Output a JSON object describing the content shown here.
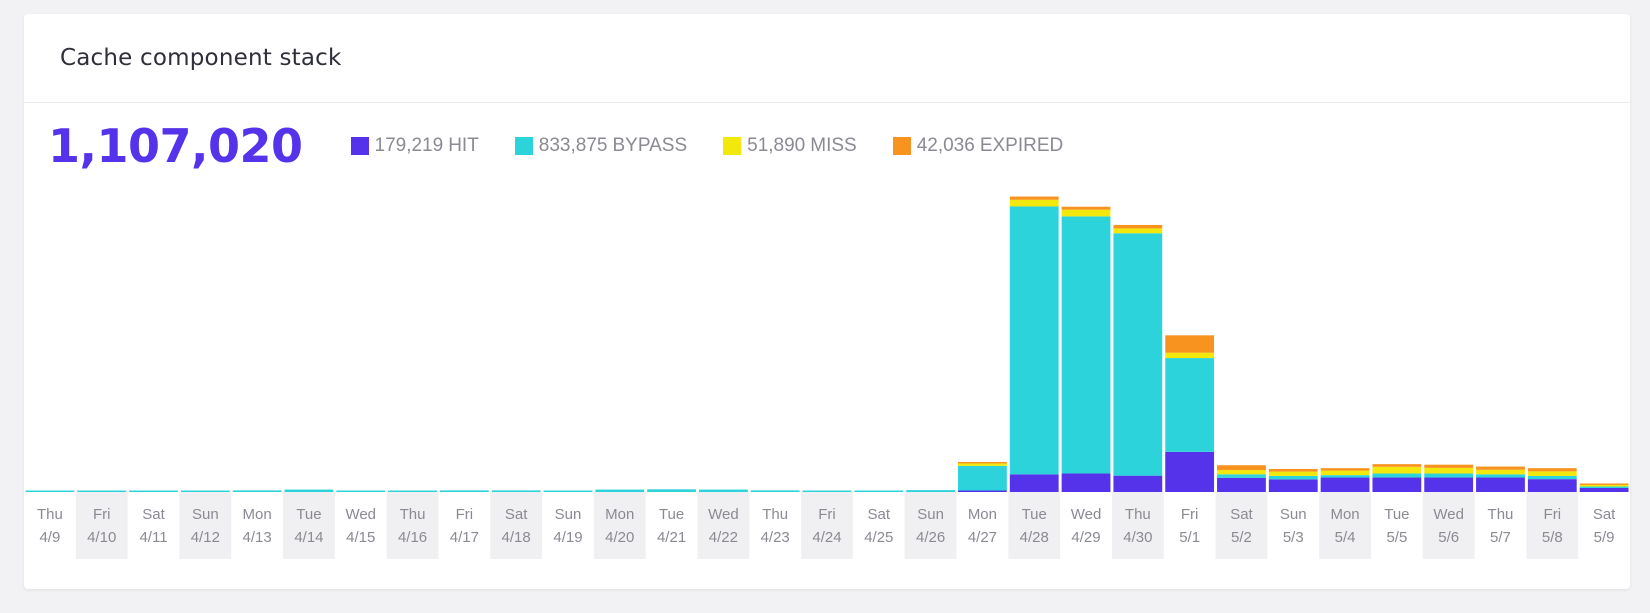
{
  "card": {
    "title": "Cache component stack"
  },
  "summary": {
    "total": "1,107,020"
  },
  "legend": [
    {
      "value": "179,219",
      "label": "HIT",
      "color": "#5533ea"
    },
    {
      "value": "833,875",
      "label": "BYPASS",
      "color": "#2dd3db"
    },
    {
      "value": "51,890",
      "label": "MISS",
      "color": "#f2e80c"
    },
    {
      "value": "42,036",
      "label": "EXPIRED",
      "color": "#f7931e"
    }
  ],
  "chart_data": {
    "type": "bar",
    "stacked": true,
    "categories_day": [
      "Thu",
      "Fri",
      "Sat",
      "Sun",
      "Mon",
      "Tue",
      "Wed",
      "Thu",
      "Fri",
      "Sat",
      "Sun",
      "Mon",
      "Tue",
      "Wed",
      "Thu",
      "Fri",
      "Sat",
      "Sun",
      "Mon",
      "Tue",
      "Wed",
      "Thu",
      "Fri",
      "Sat",
      "Sun",
      "Mon",
      "Tue",
      "Wed",
      "Thu",
      "Fri",
      "Sat"
    ],
    "categories_date": [
      "4/9",
      "4/10",
      "4/11",
      "4/12",
      "4/13",
      "4/14",
      "4/15",
      "4/16",
      "4/17",
      "4/18",
      "4/19",
      "4/20",
      "4/21",
      "4/22",
      "4/23",
      "4/24",
      "4/25",
      "4/26",
      "4/27",
      "4/28",
      "4/29",
      "4/30",
      "5/1",
      "5/2",
      "5/3",
      "5/4",
      "5/5",
      "5/6",
      "5/7",
      "5/8",
      "5/9"
    ],
    "series": [
      {
        "name": "HIT",
        "color": "#5533ea",
        "values": [
          0,
          0,
          0,
          0,
          0,
          0,
          0,
          0,
          0,
          0,
          0,
          0,
          0,
          0,
          0,
          0,
          0,
          0,
          500,
          6600,
          6900,
          6100,
          15000,
          5300,
          4700,
          5400,
          5400,
          5400,
          5400,
          4800,
          1500
        ]
      },
      {
        "name": "BYPASS",
        "color": "#2dd3db",
        "values": [
          500,
          300,
          500,
          500,
          600,
          900,
          300,
          400,
          600,
          600,
          400,
          900,
          1000,
          900,
          600,
          400,
          300,
          700,
          9200,
          100000,
          96000,
          90500,
          35000,
          1300,
          1300,
          900,
          1500,
          1500,
          1200,
          1200,
          300
        ]
      },
      {
        "name": "MISS",
        "color": "#f2e80c",
        "values": [
          0,
          0,
          0,
          0,
          0,
          0,
          0,
          0,
          0,
          0,
          0,
          0,
          0,
          0,
          0,
          0,
          0,
          0,
          900,
          2500,
          2500,
          1800,
          2000,
          1600,
          1600,
          1700,
          2500,
          2100,
          1700,
          1700,
          500
        ]
      },
      {
        "name": "EXPIRED",
        "color": "#f7931e",
        "values": [
          0,
          0,
          0,
          0,
          0,
          0,
          0,
          0,
          0,
          0,
          0,
          0,
          0,
          0,
          0,
          0,
          0,
          0,
          100,
          1200,
          1100,
          1300,
          6500,
          1800,
          1000,
          900,
          1000,
          1200,
          1200,
          1200,
          200
        ]
      }
    ],
    "ylim": [
      0,
      112000
    ],
    "grid": false,
    "legend": "top"
  }
}
